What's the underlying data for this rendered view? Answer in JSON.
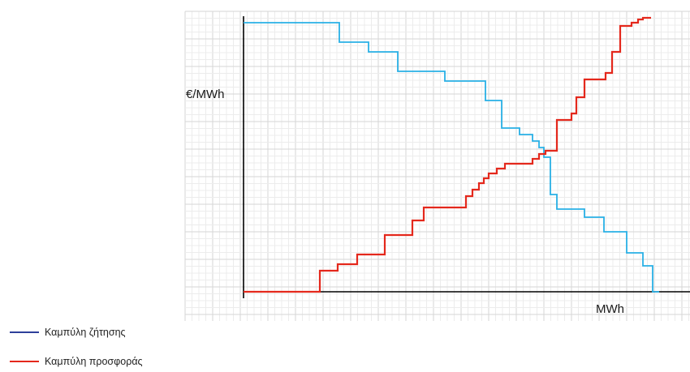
{
  "chart_data": {
    "type": "line",
    "step": true,
    "xlabel": "MWh",
    "ylabel": "€/MWh",
    "grid": true,
    "legend_position": "bottom-left",
    "xlim": [
      0,
      560
    ],
    "ylim": [
      0,
      340
    ],
    "series": [
      {
        "name": "Καμπύλη ζήτησης",
        "legend_color": "#2e3f9a",
        "line_color": "#29b0e6",
        "x": [
          0,
          118,
          118,
          154,
          154,
          190,
          190,
          248,
          248,
          298,
          298,
          318,
          318,
          340,
          340,
          356,
          356,
          364,
          364,
          370,
          370,
          378,
          378,
          386,
          386,
          420,
          420,
          444,
          444,
          472,
          472,
          492,
          492,
          504,
          504,
          512
        ],
        "y": [
          332,
          332,
          308,
          308,
          296,
          296,
          272,
          272,
          260,
          260,
          236,
          236,
          202,
          202,
          194,
          194,
          186,
          186,
          178,
          178,
          166,
          166,
          120,
          120,
          102,
          102,
          92,
          92,
          74,
          74,
          48,
          48,
          32,
          32,
          0,
          0
        ]
      },
      {
        "name": "Καμπύλη προσφοράς",
        "legend_color": "#e4281c",
        "line_color": "#e4281c",
        "x": [
          0,
          94,
          94,
          116,
          116,
          140,
          140,
          174,
          174,
          208,
          208,
          222,
          222,
          274,
          274,
          282,
          282,
          290,
          290,
          296,
          296,
          302,
          302,
          312,
          312,
          322,
          322,
          356,
          356,
          364,
          364,
          372,
          372,
          386,
          386,
          404,
          404,
          410,
          410,
          420,
          420,
          446,
          446,
          454,
          454,
          464,
          464,
          478,
          478,
          486,
          486,
          492,
          492,
          502
        ],
        "y": [
          0,
          0,
          26,
          26,
          34,
          34,
          46,
          46,
          70,
          70,
          88,
          88,
          104,
          104,
          118,
          118,
          126,
          126,
          134,
          134,
          140,
          140,
          146,
          146,
          152,
          152,
          158,
          158,
          164,
          164,
          170,
          170,
          174,
          174,
          212,
          212,
          220,
          220,
          240,
          240,
          262,
          262,
          270,
          270,
          296,
          296,
          328,
          328,
          332,
          332,
          336,
          336,
          338,
          338
        ]
      }
    ]
  }
}
